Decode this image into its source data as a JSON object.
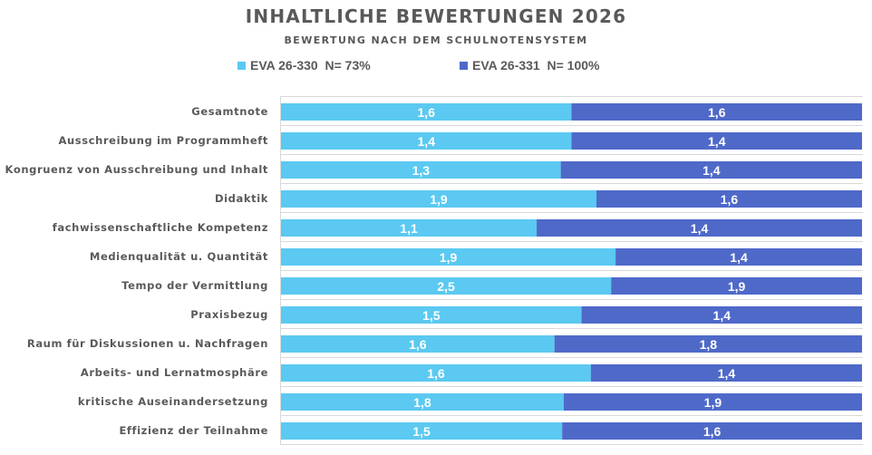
{
  "chart_data": {
    "type": "bar",
    "orientation": "horizontal",
    "stacking": "percent",
    "title": "INHALTLICHE BEWERTUNGEN 2026",
    "subtitle": "BEWERTUNG NACH DEM SCHULNOTENSYSTEM",
    "xlabel": "",
    "ylabel": "",
    "grid": true,
    "legend_position": "top",
    "categories": [
      "Gesamtnote",
      "Ausschreibung im Programmheft",
      "Kongruenz von Ausschreibung und Inhalt",
      "Didaktik",
      "fachwissenschaftliche Kompetenz",
      "Medienqualität u. Quantität",
      "Tempo der Vermittlung",
      "Praxisbezug",
      "Raum für Diskussionen u. Nachfragen",
      "Arbeits- und Lernatmosphäre",
      "kritische Auseinandersetzung",
      "Effizienz der Teilnahme"
    ],
    "series": [
      {
        "name": "EVA 26-330  N= 73%",
        "color": "#5BC9F1",
        "values": [
          1.6,
          1.4,
          1.3,
          1.9,
          1.1,
          1.9,
          2.5,
          1.5,
          1.6,
          1.6,
          1.8,
          1.5
        ],
        "labels": [
          "1,6",
          "1,4",
          "1,3",
          "1,9",
          "1,1",
          "1,9",
          "2,5",
          "1,5",
          "1,6",
          "1,6",
          "1,8",
          "1,5"
        ]
      },
      {
        "name": "EVA 26-331  N= 100%",
        "color": "#4F69C9",
        "values": [
          1.6,
          1.4,
          1.4,
          1.6,
          1.4,
          1.4,
          1.9,
          1.4,
          1.8,
          1.4,
          1.9,
          1.6
        ],
        "labels": [
          "1,6",
          "1,4",
          "1,4",
          "1,6",
          "1,4",
          "1,4",
          "1,9",
          "1,4",
          "1,8",
          "1,4",
          "1,9",
          "1,6"
        ]
      }
    ]
  }
}
